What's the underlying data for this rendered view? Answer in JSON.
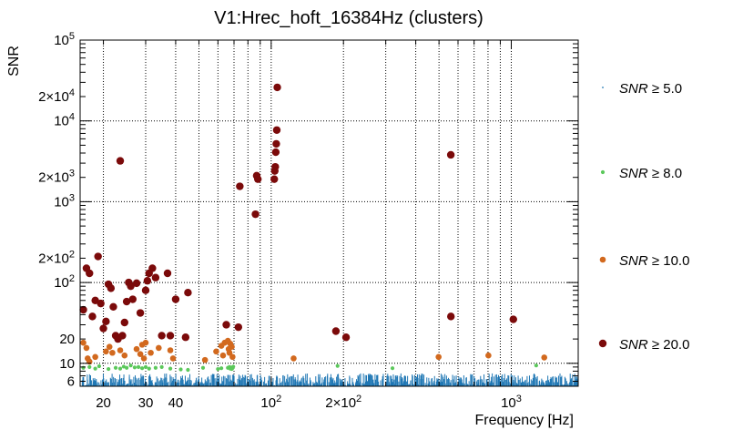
{
  "chart_data": {
    "type": "scatter",
    "title": "V1:Hrec_hoft_16384Hz (clusters)",
    "xlabel": "Frequency [Hz]",
    "ylabel": "SNR",
    "x_scale": "log",
    "y_scale": "log",
    "xlim": [
      16,
      1900
    ],
    "ylim": [
      5.2,
      100000
    ],
    "grid": true,
    "legend_position": "right",
    "x_ticks": [
      {
        "value": 20,
        "label": "20"
      },
      {
        "value": 30,
        "label": "30"
      },
      {
        "value": 40,
        "label": "40"
      },
      {
        "value": 100,
        "label": "10²"
      },
      {
        "value": 200,
        "label": "2×10²"
      },
      {
        "value": 1000,
        "label": "10³"
      }
    ],
    "y_ticks": [
      {
        "value": 6,
        "label": "6"
      },
      {
        "value": 10,
        "label": "10"
      },
      {
        "value": 20,
        "label": "20"
      },
      {
        "value": 100,
        "label": "10²"
      },
      {
        "value": 200,
        "label": "2×10²"
      },
      {
        "value": 1000,
        "label": "10³"
      },
      {
        "value": 2000,
        "label": "2×10³"
      },
      {
        "value": 10000,
        "label": "10⁴"
      },
      {
        "value": 20000,
        "label": "2×10⁴"
      },
      {
        "value": 100000,
        "label": "10⁵"
      }
    ],
    "series": [
      {
        "name": "SNR ≥ 5.0",
        "label_var": "SNR",
        "label_rest": " ≥ 5.0",
        "color": "#1f77b4",
        "marker": "dot",
        "x_range": [
          16,
          1900
        ],
        "y_range": [
          5.2,
          7.5
        ],
        "count": 900
      },
      {
        "name": "SNR ≥ 8.0",
        "label_var": "SNR",
        "label_rest": " ≥ 8.0",
        "color": "#5bc85b",
        "marker": "small",
        "points": [
          [
            16.5,
            8.8
          ],
          [
            17.5,
            9.0
          ],
          [
            18.5,
            8.6
          ],
          [
            19.2,
            9.2
          ],
          [
            21,
            8.5
          ],
          [
            22.5,
            8.8
          ],
          [
            23.5,
            8.6
          ],
          [
            24.3,
            9.1
          ],
          [
            25,
            8.8
          ],
          [
            26,
            9.4
          ],
          [
            27,
            8.9
          ],
          [
            28,
            9.0
          ],
          [
            29,
            8.7
          ],
          [
            30,
            9.0
          ],
          [
            31,
            8.6
          ],
          [
            33,
            8.8
          ],
          [
            35,
            9.0
          ],
          [
            38,
            8.6
          ],
          [
            42,
            8.4
          ],
          [
            45,
            8.3
          ],
          [
            52,
            8.8
          ],
          [
            60,
            8.5
          ],
          [
            62,
            8.7
          ],
          [
            66,
            8.8
          ],
          [
            67,
            9.0
          ],
          [
            67.5,
            8.6
          ],
          [
            68,
            8.9
          ],
          [
            68.5,
            8.5
          ],
          [
            69,
            8.7
          ],
          [
            69.5,
            9.1
          ],
          [
            189,
            9.3
          ],
          [
            320,
            8.7
          ],
          [
            1270,
            9.4
          ]
        ]
      },
      {
        "name": "SNR ≥ 10.0",
        "label_var": "SNR",
        "label_rest": " ≥ 10.0",
        "color": "#d2691e",
        "marker": "medium",
        "points": [
          [
            16.5,
            18.0
          ],
          [
            17,
            15.5
          ],
          [
            17.2,
            11.5
          ],
          [
            17.5,
            10.5
          ],
          [
            18.5,
            12.0
          ],
          [
            20.5,
            14.0
          ],
          [
            21.2,
            16.0
          ],
          [
            21.8,
            13.5
          ],
          [
            23.5,
            14.5
          ],
          [
            24.5,
            12.5
          ],
          [
            27.5,
            15.0
          ],
          [
            28.5,
            13.0
          ],
          [
            29,
            17.0
          ],
          [
            29.5,
            11.5
          ],
          [
            30,
            18.0
          ],
          [
            31.5,
            13.5
          ],
          [
            34,
            15.5
          ],
          [
            38,
            14.5
          ],
          [
            39,
            11.5
          ],
          [
            53,
            11.0
          ],
          [
            59,
            14.0
          ],
          [
            62,
            16.5
          ],
          [
            63,
            12.5
          ],
          [
            64,
            18.0
          ],
          [
            66,
            19.0
          ],
          [
            66.5,
            15.0
          ],
          [
            67,
            13.5
          ],
          [
            67.5,
            17.5
          ],
          [
            68.5,
            16.0
          ],
          [
            69,
            12.0
          ],
          [
            124,
            11.5
          ],
          [
            498,
            12.0
          ],
          [
            803,
            12.5
          ],
          [
            1372,
            11.8
          ]
        ]
      },
      {
        "name": "SNR ≥ 20.0",
        "label_var": "SNR",
        "label_rest": " ≥ 20.0",
        "color": "#7b0a0a",
        "marker": "large",
        "points": [
          [
            16.5,
            46
          ],
          [
            17,
            150
          ],
          [
            17.5,
            130
          ],
          [
            18,
            38
          ],
          [
            18.5,
            60
          ],
          [
            19,
            210
          ],
          [
            19.5,
            55
          ],
          [
            20,
            27
          ],
          [
            20.5,
            33
          ],
          [
            21,
            95
          ],
          [
            21.5,
            85
          ],
          [
            22,
            50
          ],
          [
            22.5,
            22
          ],
          [
            23,
            20
          ],
          [
            23.5,
            3200
          ],
          [
            24,
            22
          ],
          [
            24.5,
            32
          ],
          [
            25,
            58
          ],
          [
            25.5,
            100
          ],
          [
            26,
            90
          ],
          [
            26.5,
            62
          ],
          [
            27.5,
            98
          ],
          [
            28.5,
            42
          ],
          [
            30,
            80
          ],
          [
            30.5,
            105
          ],
          [
            31,
            130
          ],
          [
            32,
            150
          ],
          [
            33,
            115
          ],
          [
            35,
            22
          ],
          [
            37,
            130
          ],
          [
            38,
            22
          ],
          [
            40,
            62
          ],
          [
            44,
            21
          ],
          [
            45,
            75
          ],
          [
            65,
            30
          ],
          [
            73,
            28
          ],
          [
            74,
            1550
          ],
          [
            86,
            700
          ],
          [
            87,
            2100
          ],
          [
            88,
            1900
          ],
          [
            103,
            1900
          ],
          [
            103.5,
            2400
          ],
          [
            104,
            2700
          ],
          [
            104.5,
            4100
          ],
          [
            105,
            5200
          ],
          [
            105.5,
            7700
          ],
          [
            106,
            26000
          ],
          [
            186,
            25
          ],
          [
            205,
            21
          ],
          [
            560,
            3800
          ],
          [
            560.5,
            38
          ],
          [
            1020,
            35
          ]
        ]
      }
    ]
  }
}
